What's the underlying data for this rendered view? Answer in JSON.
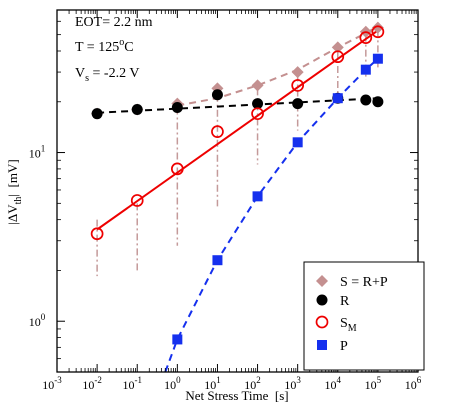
{
  "chart_data": {
    "type": "scatter",
    "xlabel": "Net Stress Time",
    "xlabel_unit": "[s]",
    "ylabel_prefix": "|ΔV",
    "ylabel_sub": "th",
    "ylabel_suffix": "|",
    "ylabel_unit": "[mV]",
    "xscale": "log",
    "yscale": "log",
    "xlim": [
      0.001,
      1000000
    ],
    "ylim": [
      0.5,
      70
    ],
    "x_ticks": [
      {
        "base": "10",
        "exp": "-3"
      },
      {
        "base": "10",
        "exp": "-2"
      },
      {
        "base": "10",
        "exp": "-1"
      },
      {
        "base": "10",
        "exp": "0"
      },
      {
        "base": "10",
        "exp": "1"
      },
      {
        "base": "10",
        "exp": "2"
      },
      {
        "base": "10",
        "exp": "3"
      },
      {
        "base": "10",
        "exp": "4"
      },
      {
        "base": "10",
        "exp": "5"
      },
      {
        "base": "10",
        "exp": "6"
      }
    ],
    "y_ticks": [
      {
        "base": "10",
        "exp": "0"
      },
      {
        "base": "10",
        "exp": "1"
      }
    ],
    "annotations": {
      "eot": "EOT= 2.2 nm",
      "temp_prefix": "T  = 125",
      "temp_sup": "o",
      "temp_suffix": "C",
      "vs_prefix": "V",
      "vs_sub": "s",
      "vs_suffix": " = -2.2 V"
    },
    "legend_position": "bottom-right",
    "series": [
      {
        "name": "S = R+P",
        "name_main": "S = R+P",
        "name_sub": "",
        "marker": "diamond",
        "color": "#c49090",
        "x": [
          0.01,
          0.1,
          1,
          10,
          100,
          1000,
          10000,
          50000,
          100000
        ],
        "y": [
          17,
          18,
          19.5,
          24,
          25,
          30,
          42,
          52,
          55
        ],
        "fit_x": [
          1,
          10,
          100,
          1000,
          10000,
          50000,
          100000
        ],
        "fit_y": [
          19,
          21,
          25,
          31,
          42,
          51,
          56
        ]
      },
      {
        "name": "R",
        "name_main": "R",
        "name_sub": "",
        "marker": "circle-filled",
        "color": "#000000",
        "x": [
          0.01,
          0.1,
          1,
          10,
          100,
          1000,
          10000,
          50000,
          100000
        ],
        "y": [
          17,
          18,
          18.5,
          22,
          19.5,
          19.5,
          21,
          20.5,
          20
        ],
        "fit_x": [
          0.01,
          100000
        ],
        "fit_y": [
          17.2,
          21
        ]
      },
      {
        "name": "S_M",
        "name_main": "S",
        "name_sub": "M",
        "marker": "circle-open",
        "color": "#ee0000",
        "x": [
          0.01,
          0.1,
          1,
          10,
          100,
          1000,
          10000,
          50000,
          100000
        ],
        "y": [
          3.3,
          5.2,
          8,
          13.3,
          17,
          25,
          37,
          48,
          52
        ],
        "fit_x": [
          0.01,
          100000
        ],
        "fit_y": [
          3.5,
          53
        ]
      },
      {
        "name": "P",
        "name_main": "P",
        "name_sub": "",
        "marker": "square",
        "color": "#1530ee",
        "x": [
          1,
          10,
          100,
          1000,
          10000,
          50000,
          100000
        ],
        "y": [
          0.78,
          2.3,
          5.5,
          11.5,
          21,
          31,
          36
        ],
        "fit_x": [
          0.5,
          1,
          10,
          100,
          1000,
          10000,
          50000,
          100000
        ],
        "fit_y": [
          0.5,
          0.78,
          2.3,
          5.5,
          11.5,
          21,
          31,
          36
        ]
      }
    ],
    "dropdown_lines": [
      {
        "x": 0.01,
        "y_top": 4,
        "y_bottom": 1.85
      },
      {
        "x": 0.1,
        "y_top": 5,
        "y_bottom": 2.0
      },
      {
        "x": 1,
        "y_top": 18.5,
        "y_bottom": 2.8
      },
      {
        "x": 10,
        "y_top": 22,
        "y_bottom": 4.8
      },
      {
        "x": 100,
        "y_top": 24,
        "y_bottom": 8.5
      },
      {
        "x": 1000,
        "y_top": 29,
        "y_bottom": 13.5
      },
      {
        "x": 10000,
        "y_top": 40,
        "y_bottom": 20
      },
      {
        "x": 50000,
        "y_top": 50,
        "y_bottom": 27
      },
      {
        "x": 100000,
        "y_top": 53,
        "y_bottom": 32
      }
    ]
  }
}
